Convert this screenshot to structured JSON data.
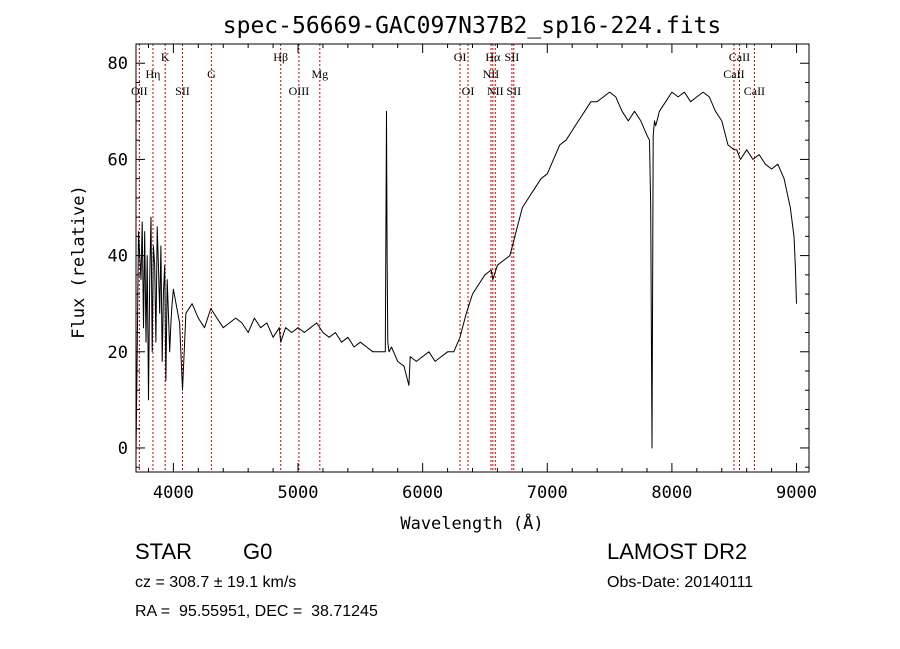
{
  "chart_data": {
    "type": "line",
    "title": "spec-56669-GAC097N37B2_sp16-224.fits",
    "xlabel": "Wavelength (Å)",
    "ylabel": "Flux (relative)",
    "xlim": [
      3700,
      9100
    ],
    "ylim": [
      -5,
      84
    ],
    "x_ticks": [
      4000,
      5000,
      6000,
      7000,
      8000,
      9000
    ],
    "y_ticks": [
      0,
      20,
      40,
      60,
      80
    ],
    "grid": false,
    "line_color": "#000000",
    "marker_line_color": "#cc0000",
    "spectral_lines": [
      {
        "label": "OII",
        "wavelength": 3727,
        "row": 3
      },
      {
        "label": "Hη",
        "wavelength": 3836,
        "row": 2
      },
      {
        "label": "K",
        "wavelength": 3934,
        "row": 1
      },
      {
        "label": "SII",
        "wavelength": 4073,
        "row": 3
      },
      {
        "label": "G",
        "wavelength": 4305,
        "row": 2
      },
      {
        "label": "Hβ",
        "wavelength": 4861,
        "row": 1
      },
      {
        "label": "OIII",
        "wavelength": 5007,
        "row": 3
      },
      {
        "label": "Mg",
        "wavelength": 5175,
        "row": 2
      },
      {
        "label": "OI",
        "wavelength": 6300,
        "row": 1
      },
      {
        "label": "OI",
        "wavelength": 6364,
        "row": 3
      },
      {
        "label": "NII",
        "wavelength": 6548,
        "row": 2
      },
      {
        "label": "Hα",
        "wavelength": 6563,
        "row": 1
      },
      {
        "label": "NII",
        "wavelength": 6583,
        "row": 3
      },
      {
        "label": "SII",
        "wavelength": 6716,
        "row": 1
      },
      {
        "label": "SII",
        "wavelength": 6731,
        "row": 3
      },
      {
        "label": "CaII",
        "wavelength": 8498,
        "row": 2
      },
      {
        "label": "CaII",
        "wavelength": 8542,
        "row": 1
      },
      {
        "label": "CaII",
        "wavelength": 8662,
        "row": 3
      }
    ],
    "series": [
      {
        "x": [
          3700,
          3710,
          3720,
          3730,
          3740,
          3750,
          3760,
          3770,
          3780,
          3790,
          3800,
          3810,
          3820,
          3830,
          3840,
          3850,
          3860,
          3870,
          3880,
          3890,
          3900,
          3910,
          3920,
          3930,
          3940,
          3950,
          3960,
          3970,
          3980,
          3990,
          4000,
          4050,
          4073,
          4100,
          4150,
          4200,
          4250,
          4300,
          4350,
          4400,
          4450,
          4500,
          4550,
          4600,
          4650,
          4700,
          4750,
          4800,
          4850,
          4861,
          4900,
          4950,
          5000,
          5050,
          5100,
          5150,
          5200,
          5250,
          5300,
          5350,
          5400,
          5450,
          5500,
          5550,
          5600,
          5650,
          5700,
          5710,
          5715,
          5720,
          5730,
          5750,
          5800,
          5850,
          5890,
          5900,
          5950,
          6000,
          6050,
          6100,
          6150,
          6200,
          6250,
          6300,
          6350,
          6400,
          6450,
          6500,
          6550,
          6563,
          6600,
          6650,
          6700,
          6750,
          6800,
          6850,
          6900,
          6950,
          7000,
          7050,
          7100,
          7150,
          7200,
          7250,
          7300,
          7350,
          7400,
          7450,
          7500,
          7550,
          7600,
          7650,
          7700,
          7750,
          7800,
          7820,
          7830,
          7840,
          7850,
          7860,
          7870,
          7880,
          7900,
          7950,
          8000,
          8050,
          8100,
          8150,
          8200,
          8250,
          8300,
          8350,
          8400,
          8450,
          8500,
          8520,
          8550,
          8600,
          8650,
          8700,
          8750,
          8800,
          8850,
          8900,
          8950,
          8980,
          8990,
          9000
        ],
        "y": [
          -2,
          20,
          45,
          40,
          35,
          47,
          25,
          45,
          22,
          40,
          10,
          35,
          48,
          20,
          42,
          38,
          22,
          46,
          38,
          28,
          42,
          18,
          32,
          38,
          14,
          35,
          28,
          20,
          26,
          30,
          33,
          26,
          12,
          28,
          30,
          27,
          25,
          29,
          27,
          25,
          26,
          27,
          26,
          24,
          27,
          25,
          26,
          23,
          25,
          22,
          25,
          24,
          25,
          24,
          25,
          26,
          24,
          23,
          24,
          22,
          23,
          21,
          22,
          21,
          20,
          20,
          20,
          70,
          40,
          22,
          20,
          21,
          18,
          17,
          13,
          19,
          18,
          19,
          20,
          18,
          19,
          20,
          20,
          23,
          28,
          32,
          34,
          36,
          37,
          35,
          38,
          39,
          40,
          45,
          50,
          52,
          54,
          56,
          57,
          60,
          63,
          64,
          66,
          68,
          70,
          72,
          72,
          73,
          74,
          73,
          70,
          68,
          70,
          68,
          65,
          64,
          50,
          0,
          65,
          68,
          67,
          68,
          70,
          72,
          74,
          73,
          74,
          72,
          73,
          74,
          73,
          70,
          68,
          63,
          62,
          62,
          60,
          62,
          60,
          61,
          59,
          58,
          59,
          56,
          50,
          44,
          38,
          30
        ]
      }
    ]
  },
  "info": {
    "object_class": "STAR",
    "subclass": "G0",
    "survey": "LAMOST DR2",
    "redshift": "cz = 308.7 ± 19.1 km/s",
    "obs_date": "Obs-Date: 20140111",
    "coords": "RA =  95.55951, DEC =  38.71245"
  }
}
